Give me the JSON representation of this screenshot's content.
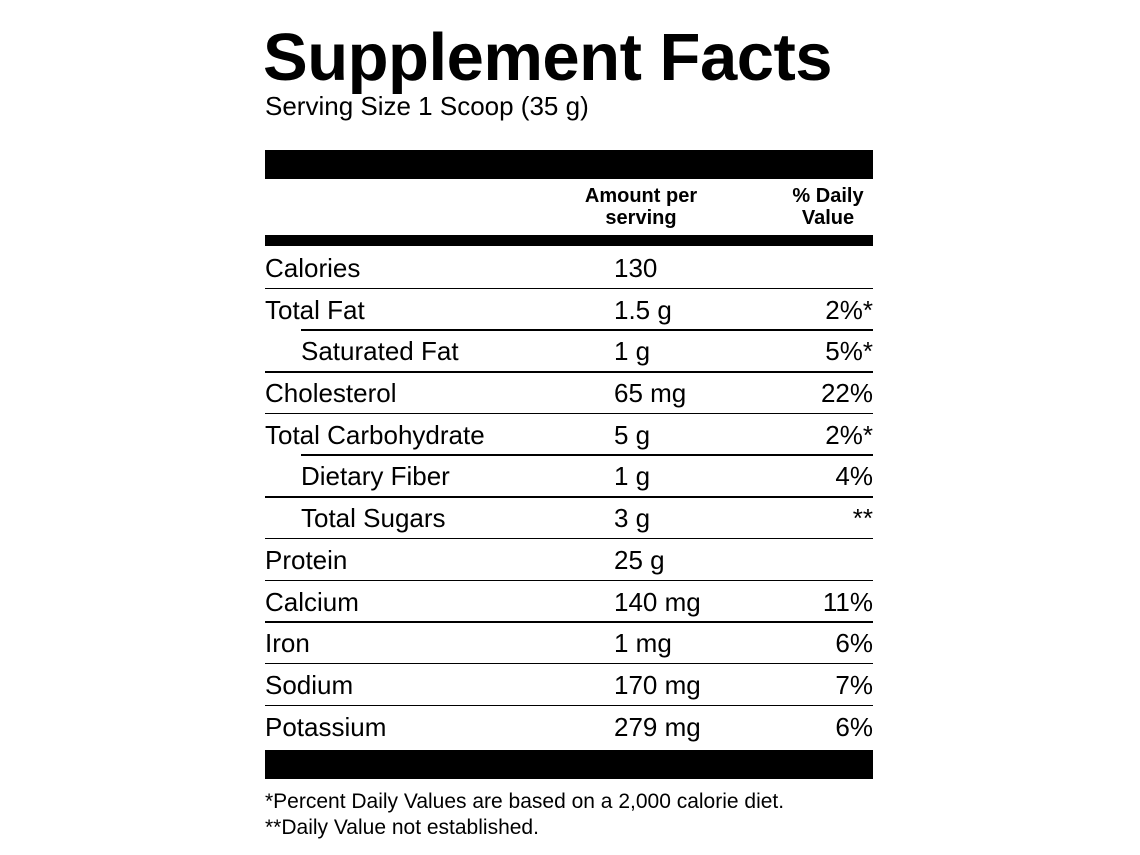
{
  "title": "Supplement Facts",
  "serving_size": "Serving Size 1 Scoop (35 g)",
  "header": {
    "amount": [
      "Amount per",
      "serving"
    ],
    "daily_value": [
      "% Daily",
      "Value"
    ]
  },
  "rows": [
    {
      "name": "Calories",
      "amount": "130",
      "dv": "",
      "indent": false
    },
    {
      "name": "Total Fat",
      "amount": "1.5 g",
      "dv": "2%*",
      "indent": false
    },
    {
      "name": "Saturated Fat",
      "amount": "1 g",
      "dv": "5%*",
      "indent": true
    },
    {
      "name": "Cholesterol",
      "amount": "65 mg",
      "dv": "22%",
      "indent": false
    },
    {
      "name": "Total Carbohydrate",
      "amount": "5 g",
      "dv": "2%*",
      "indent": false
    },
    {
      "name": "Dietary Fiber",
      "amount": "1 g",
      "dv": "4%",
      "indent": true
    },
    {
      "name": "Total Sugars",
      "amount": "3 g",
      "dv": "**",
      "indent": true
    },
    {
      "name": "Protein",
      "amount": "25 g",
      "dv": "",
      "indent": false
    },
    {
      "name": "Calcium",
      "amount": "140 mg",
      "dv": "11%",
      "indent": false
    },
    {
      "name": "Iron",
      "amount": "1 mg",
      "dv": "6%",
      "indent": false
    },
    {
      "name": "Sodium",
      "amount": "170 mg",
      "dv": "7%",
      "indent": false
    },
    {
      "name": "Potassium",
      "amount": "279 mg",
      "dv": "6%",
      "indent": false
    }
  ],
  "footnotes": [
    "*Percent Daily Values are based on a 2,000 calorie diet.",
    "**Daily Value not established."
  ]
}
